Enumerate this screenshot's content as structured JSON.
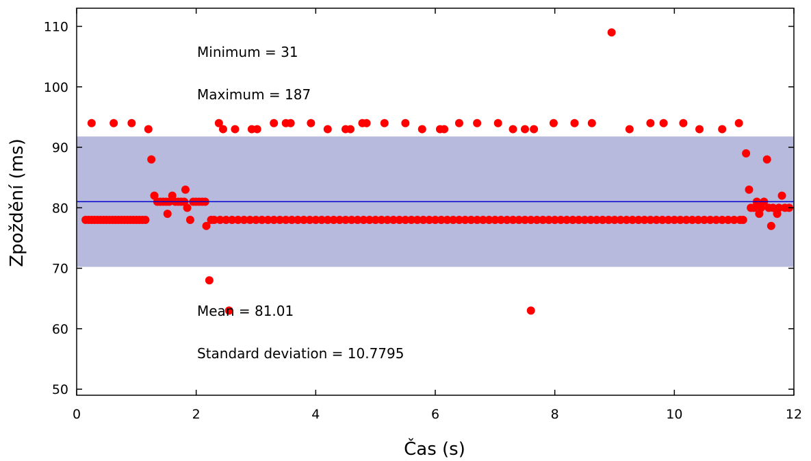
{
  "chart_data": {
    "type": "scatter",
    "title": "",
    "xlabel": "Čas (s)",
    "ylabel": "Zpoždění (ms)",
    "xlim": [
      0,
      12
    ],
    "ylim": [
      49,
      113
    ],
    "x_ticks": [
      "0",
      "2",
      "4",
      "6",
      "8",
      "10",
      "12"
    ],
    "y_ticks": [
      "50",
      "60",
      "70",
      "80",
      "90",
      "100",
      "110"
    ],
    "x_tick_values": [
      0,
      2,
      4,
      6,
      8,
      10,
      12
    ],
    "y_tick_values": [
      50,
      60,
      70,
      80,
      90,
      100,
      110
    ],
    "grid": false,
    "legend": "none",
    "colors": {
      "points": "#ff0000",
      "mean_line": "#0000cc",
      "std_band": "#b7b9dd",
      "axis": "#000000"
    },
    "mean_line_value": 81.01,
    "std_band_range": [
      70.2305,
      91.7895
    ],
    "annotations": [
      "Minimum = 31",
      "Maximum = 187",
      "Mean = 81.01",
      "Standard deviation = 10.7795"
    ],
    "series": [
      {
        "points": [
          [
            0.15,
            78
          ],
          [
            0.2,
            78
          ],
          [
            0.25,
            78
          ],
          [
            0.3,
            78
          ],
          [
            0.35,
            78
          ],
          [
            0.4,
            78
          ],
          [
            0.45,
            78
          ],
          [
            0.5,
            78
          ],
          [
            0.55,
            78
          ],
          [
            0.6,
            78
          ],
          [
            0.65,
            78
          ],
          [
            0.7,
            78
          ],
          [
            0.75,
            78
          ],
          [
            0.8,
            78
          ],
          [
            0.85,
            78
          ],
          [
            0.9,
            78
          ],
          [
            0.95,
            78
          ],
          [
            1.0,
            78
          ],
          [
            1.05,
            78
          ],
          [
            1.1,
            78
          ],
          [
            1.15,
            78
          ],
          [
            0.25,
            94
          ],
          [
            0.62,
            94
          ],
          [
            0.92,
            94
          ],
          [
            1.2,
            93
          ],
          [
            1.25,
            88
          ],
          [
            1.3,
            82
          ],
          [
            1.35,
            81
          ],
          [
            1.4,
            81
          ],
          [
            1.45,
            81
          ],
          [
            1.5,
            81
          ],
          [
            1.55,
            81
          ],
          [
            1.6,
            82
          ],
          [
            1.65,
            81
          ],
          [
            1.7,
            81
          ],
          [
            1.75,
            81
          ],
          [
            1.8,
            81
          ],
          [
            1.85,
            80
          ],
          [
            1.95,
            81
          ],
          [
            2.0,
            81
          ],
          [
            2.05,
            81
          ],
          [
            2.1,
            81
          ],
          [
            2.15,
            81
          ],
          [
            1.52,
            79
          ],
          [
            1.82,
            83
          ],
          [
            1.9,
            78
          ],
          [
            2.17,
            77
          ],
          [
            2.22,
            68
          ],
          [
            2.25,
            78
          ],
          [
            2.3,
            78
          ],
          [
            2.38,
            94
          ],
          [
            2.45,
            93
          ],
          [
            2.55,
            63
          ],
          [
            2.65,
            93
          ],
          [
            2.93,
            93
          ],
          [
            3.02,
            93
          ],
          [
            3.3,
            94
          ],
          [
            3.5,
            94
          ],
          [
            3.58,
            94
          ],
          [
            3.92,
            94
          ],
          [
            4.2,
            93
          ],
          [
            4.5,
            93
          ],
          [
            4.58,
            93
          ],
          [
            4.78,
            94
          ],
          [
            4.85,
            94
          ],
          [
            5.15,
            94
          ],
          [
            5.5,
            94
          ],
          [
            5.78,
            93
          ],
          [
            6.08,
            93
          ],
          [
            6.15,
            93
          ],
          [
            6.4,
            94
          ],
          [
            6.7,
            94
          ],
          [
            7.05,
            94
          ],
          [
            7.3,
            93
          ],
          [
            7.5,
            93
          ],
          [
            7.65,
            93
          ],
          [
            7.98,
            94
          ],
          [
            8.33,
            94
          ],
          [
            8.62,
            94
          ],
          [
            8.95,
            109
          ],
          [
            9.25,
            93
          ],
          [
            9.6,
            94
          ],
          [
            9.82,
            94
          ],
          [
            10.15,
            94
          ],
          [
            10.42,
            93
          ],
          [
            10.8,
            93
          ],
          [
            11.08,
            94
          ],
          [
            7.6,
            63
          ],
          [
            2.4,
            78
          ],
          [
            2.5,
            78
          ],
          [
            2.6,
            78
          ],
          [
            2.7,
            78
          ],
          [
            2.8,
            78
          ],
          [
            2.9,
            78
          ],
          [
            3.0,
            78
          ],
          [
            3.1,
            78
          ],
          [
            3.2,
            78
          ],
          [
            3.3,
            78
          ],
          [
            3.4,
            78
          ],
          [
            3.5,
            78
          ],
          [
            3.6,
            78
          ],
          [
            3.7,
            78
          ],
          [
            3.8,
            78
          ],
          [
            3.9,
            78
          ],
          [
            4.0,
            78
          ],
          [
            4.1,
            78
          ],
          [
            4.2,
            78
          ],
          [
            4.3,
            78
          ],
          [
            4.4,
            78
          ],
          [
            4.5,
            78
          ],
          [
            4.6,
            78
          ],
          [
            4.7,
            78
          ],
          [
            4.8,
            78
          ],
          [
            4.9,
            78
          ],
          [
            5.0,
            78
          ],
          [
            5.1,
            78
          ],
          [
            5.2,
            78
          ],
          [
            5.3,
            78
          ],
          [
            5.4,
            78
          ],
          [
            5.5,
            78
          ],
          [
            5.6,
            78
          ],
          [
            5.7,
            78
          ],
          [
            5.8,
            78
          ],
          [
            5.9,
            78
          ],
          [
            6.0,
            78
          ],
          [
            6.1,
            78
          ],
          [
            6.2,
            78
          ],
          [
            6.3,
            78
          ],
          [
            6.4,
            78
          ],
          [
            6.5,
            78
          ],
          [
            6.6,
            78
          ],
          [
            6.7,
            78
          ],
          [
            6.8,
            78
          ],
          [
            6.9,
            78
          ],
          [
            7.0,
            78
          ],
          [
            7.1,
            78
          ],
          [
            7.2,
            78
          ],
          [
            7.3,
            78
          ],
          [
            7.4,
            78
          ],
          [
            7.5,
            78
          ],
          [
            7.6,
            78
          ],
          [
            7.7,
            78
          ],
          [
            7.8,
            78
          ],
          [
            7.9,
            78
          ],
          [
            8.0,
            78
          ],
          [
            8.1,
            78
          ],
          [
            8.2,
            78
          ],
          [
            8.3,
            78
          ],
          [
            8.4,
            78
          ],
          [
            8.5,
            78
          ],
          [
            8.6,
            78
          ],
          [
            8.7,
            78
          ],
          [
            8.8,
            78
          ],
          [
            8.9,
            78
          ],
          [
            9.0,
            78
          ],
          [
            9.1,
            78
          ],
          [
            9.2,
            78
          ],
          [
            9.3,
            78
          ],
          [
            9.4,
            78
          ],
          [
            9.5,
            78
          ],
          [
            9.6,
            78
          ],
          [
            9.7,
            78
          ],
          [
            9.8,
            78
          ],
          [
            9.9,
            78
          ],
          [
            10.0,
            78
          ],
          [
            10.1,
            78
          ],
          [
            10.2,
            78
          ],
          [
            10.3,
            78
          ],
          [
            10.4,
            78
          ],
          [
            10.5,
            78
          ],
          [
            10.6,
            78
          ],
          [
            10.7,
            78
          ],
          [
            10.8,
            78
          ],
          [
            10.9,
            78
          ],
          [
            11.0,
            78
          ],
          [
            11.1,
            78
          ],
          [
            11.15,
            78
          ],
          [
            11.2,
            89
          ],
          [
            11.25,
            83
          ],
          [
            11.28,
            80
          ],
          [
            11.33,
            80
          ],
          [
            11.38,
            81
          ],
          [
            11.42,
            79
          ],
          [
            11.45,
            80
          ],
          [
            11.5,
            81
          ],
          [
            11.55,
            88
          ],
          [
            11.58,
            80
          ],
          [
            11.62,
            77
          ],
          [
            11.65,
            80
          ],
          [
            11.72,
            79
          ],
          [
            11.75,
            80
          ],
          [
            11.8,
            82
          ],
          [
            11.85,
            80
          ],
          [
            11.92,
            80
          ]
        ]
      }
    ]
  }
}
